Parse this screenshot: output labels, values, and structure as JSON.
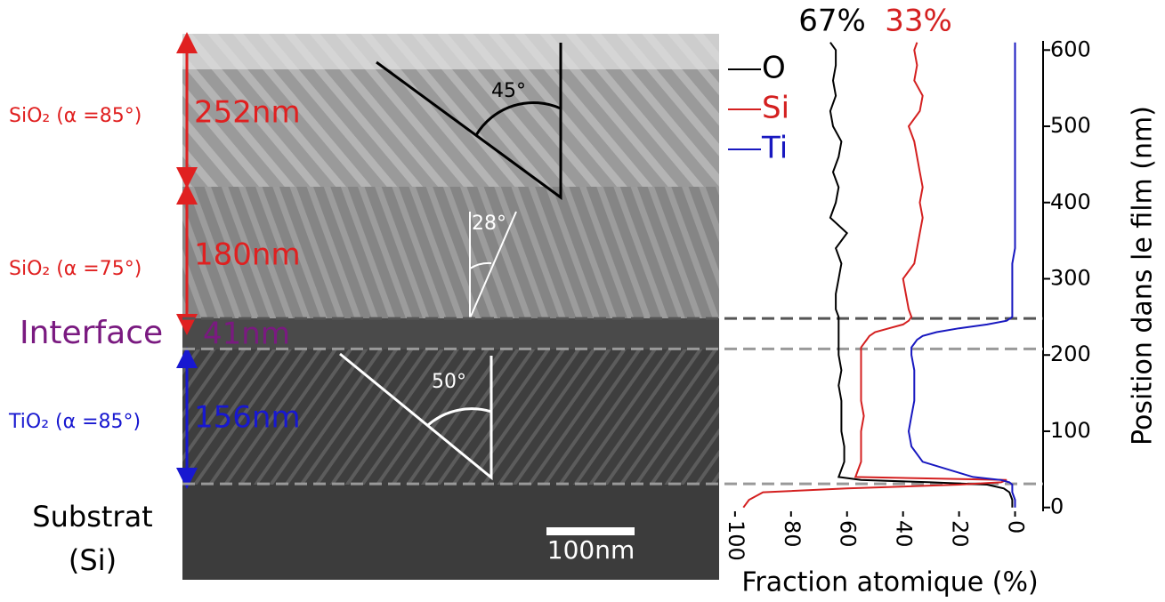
{
  "figure": {
    "layers": [
      {
        "label": "SiO₂ (α =85°)",
        "thickness": "252nm"
      },
      {
        "label": "SiO₂ (α =75°)",
        "thickness": "180nm"
      },
      {
        "label": "Interface",
        "thickness": "41nm"
      },
      {
        "label": "TiO₂ (α =85°)",
        "thickness": "156nm"
      }
    ],
    "substrate": [
      "Substrat",
      "(Si)"
    ],
    "angles": [
      "45°",
      "28°",
      "50°"
    ],
    "scale_bar": "100nm"
  },
  "chart_data": {
    "type": "line",
    "x_label": "Fraction atomique (%)",
    "y_label": "Position dans le film (nm)",
    "xlim": [
      102.5,
      -10
    ],
    "xticks": [
      100,
      80,
      60,
      40,
      20,
      0
    ],
    "ylim": [
      -5,
      612
    ],
    "yticks": [
      0,
      100,
      200,
      300,
      400,
      500,
      600
    ],
    "dashed_lines": [
      248,
      208,
      31
    ],
    "annotations": [
      {
        "text": "67%",
        "color": "#000000"
      },
      {
        "text": "33%",
        "color": "#d42020"
      }
    ],
    "y": [
      0,
      10,
      20,
      25,
      30,
      33,
      36,
      40,
      60,
      80,
      100,
      120,
      140,
      160,
      180,
      200,
      205,
      210,
      215,
      220,
      225,
      230,
      235,
      240,
      245,
      250,
      260,
      280,
      300,
      320,
      340,
      360,
      380,
      400,
      420,
      440,
      460,
      480,
      500,
      520,
      540,
      560,
      580,
      600,
      610
    ],
    "series": [
      {
        "name": "O",
        "color": "#000000",
        "values": [
          1,
          1,
          2,
          4,
          10,
          30,
          55,
          63,
          61,
          61,
          62,
          62,
          62,
          63,
          62,
          63,
          63,
          63,
          63,
          63,
          63,
          63,
          63,
          63,
          63,
          63,
          64,
          64,
          63,
          62,
          64,
          60,
          66,
          64,
          63,
          65,
          63,
          62,
          65,
          66,
          64,
          65,
          64,
          64,
          66
        ]
      },
      {
        "name": "Si",
        "color": "#d42020",
        "values": [
          97,
          95,
          90,
          60,
          20,
          5,
          3,
          57,
          55,
          55,
          55,
          54,
          55,
          55,
          55,
          55,
          55,
          55,
          54,
          53,
          52,
          50,
          45,
          40,
          38,
          37,
          38,
          39,
          40,
          36,
          35,
          34,
          33,
          34,
          33,
          34,
          35,
          36,
          38,
          34,
          33,
          36,
          35,
          36,
          35
        ]
      },
      {
        "name": "Ti",
        "color": "#1818c0",
        "values": [
          0,
          0,
          1,
          1,
          1,
          2,
          5,
          15,
          33,
          37,
          38,
          37,
          36,
          36,
          36,
          37,
          37,
          37,
          36,
          35,
          33,
          28,
          20,
          10,
          3,
          1,
          1,
          1,
          1,
          1,
          0,
          0,
          0,
          0,
          0,
          0,
          0,
          0,
          0,
          0,
          0,
          0,
          0,
          0,
          0
        ]
      }
    ]
  }
}
